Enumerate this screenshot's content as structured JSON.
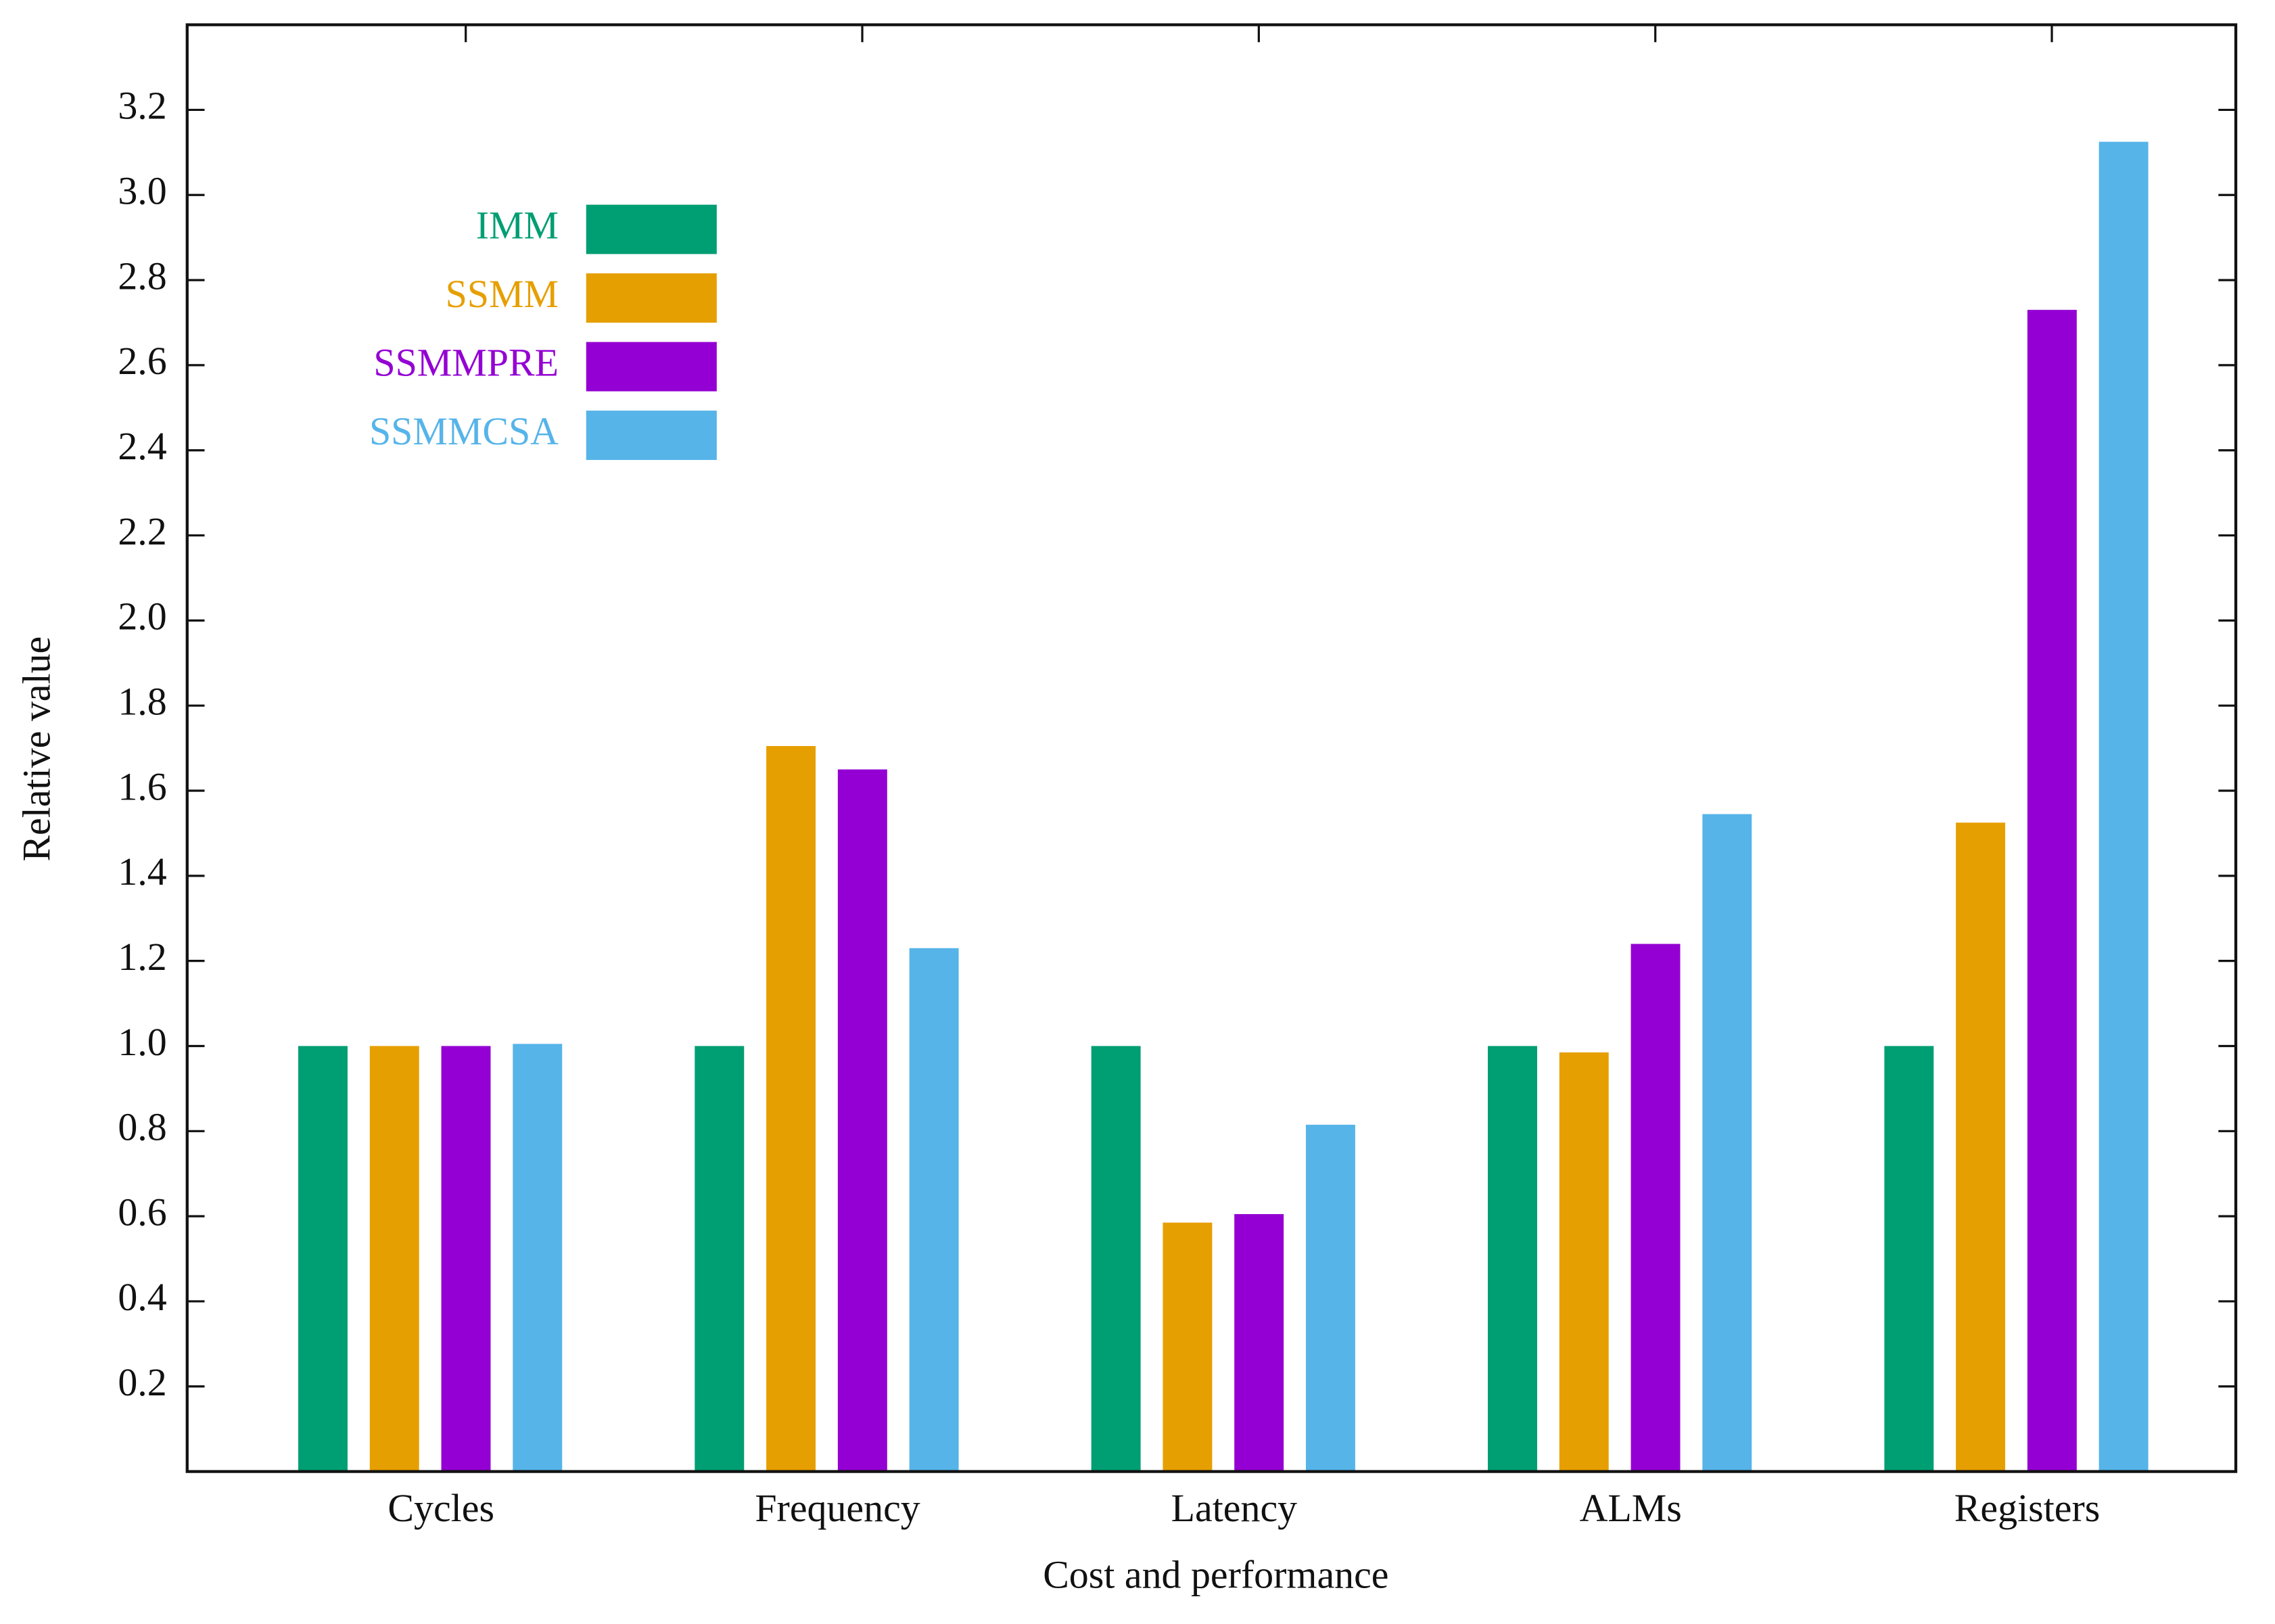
{
  "chart_data": {
    "type": "bar",
    "x_label": "Cost and performance",
    "y_label": "Relative value",
    "categories": [
      "Cycles",
      "Frequency",
      "Latency",
      "ALMs",
      "Registers"
    ],
    "series": [
      {
        "name": "IMM",
        "color": "#009e73",
        "values": [
          1.0,
          1.0,
          1.0,
          1.0,
          1.0
        ]
      },
      {
        "name": "SSMM",
        "color": "#e69f00",
        "values": [
          1.0,
          1.705,
          0.585,
          0.985,
          1.525
        ]
      },
      {
        "name": "SSMMPRE",
        "color": "#9400d3",
        "values": [
          1.0,
          1.65,
          0.605,
          1.24,
          2.73
        ]
      },
      {
        "name": "SSMMCSA",
        "color": "#56b4e9",
        "values": [
          1.005,
          1.23,
          0.815,
          1.545,
          3.125
        ]
      }
    ],
    "ylim": [
      0,
      3.4
    ],
    "yticks": [
      0.2,
      0.4,
      0.6,
      0.8,
      {
        "value": 1.0,
        "label": "1.0"
      },
      1.2,
      1.4,
      1.6,
      1.8,
      {
        "value": 2.0,
        "label": "2.0"
      },
      2.2,
      2.4,
      2.6,
      2.8,
      {
        "value": 3.0,
        "label": "3.0"
      },
      3.2
    ],
    "legend": "upper left",
    "grid": false
  }
}
